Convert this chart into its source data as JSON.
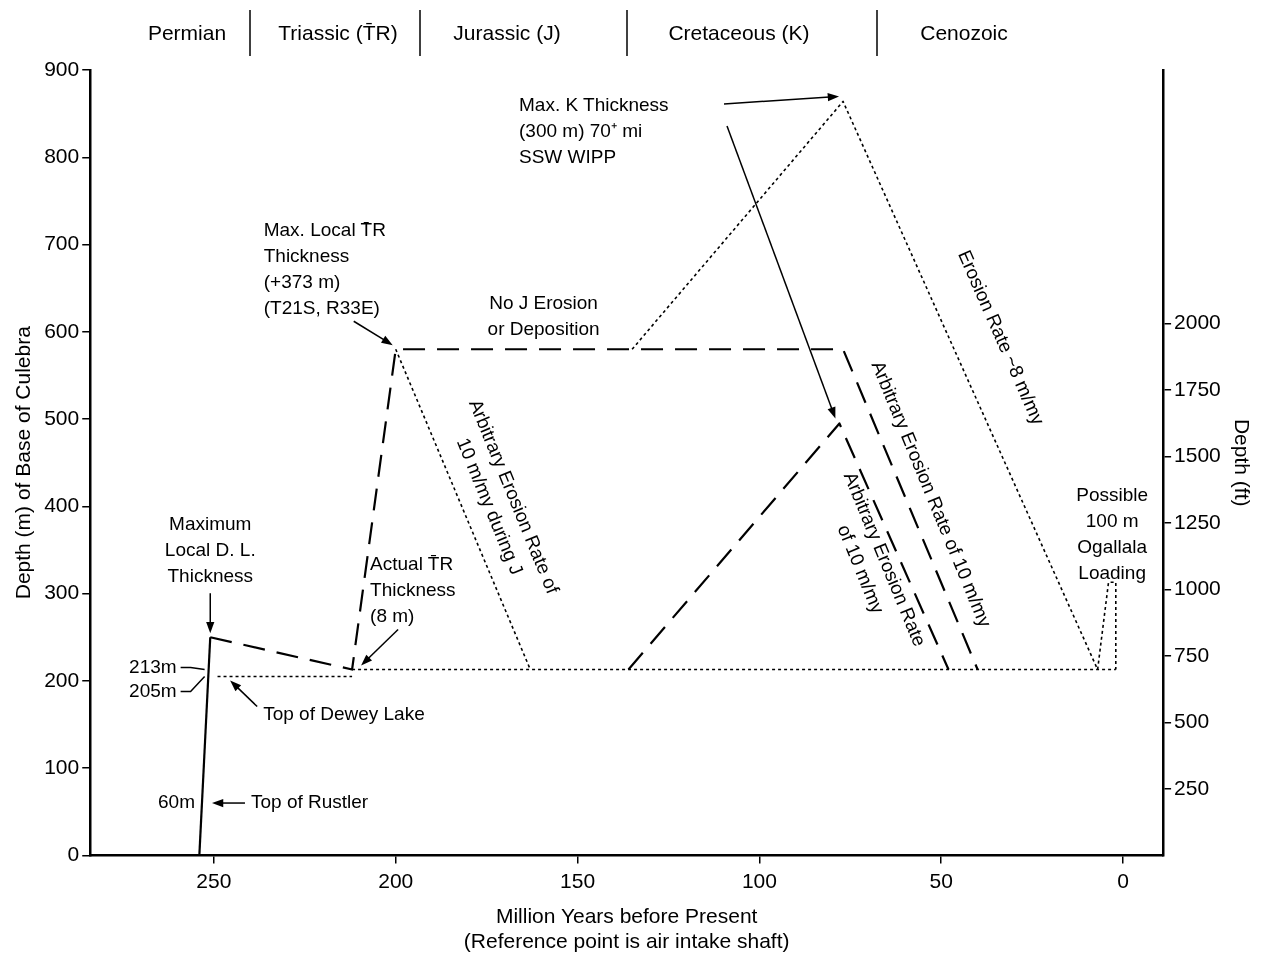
{
  "chart_data": {
    "type": "line",
    "xlabel": "Million Years before Present\n(Reference point is air intake shaft)",
    "ylabel": "Depth (m) of Base of Culebra",
    "y2label": "Depth (ft)",
    "xlim": [
      284,
      -11
    ],
    "xticks": [
      250,
      200,
      150,
      100,
      50,
      0
    ],
    "ylim": [
      0,
      900
    ],
    "yticks": [
      0,
      100,
      200,
      300,
      400,
      500,
      600,
      700,
      800,
      900
    ],
    "y2lim": [
      0,
      2953
    ],
    "y2ticks": [
      250,
      500,
      750,
      1000,
      1250,
      1500,
      1750,
      2000
    ],
    "grid": false,
    "legend": false,
    "marker": "none",
    "series": [
      {
        "color": "#000000",
        "line_style": "solid",
        "x": [
          254,
          251
        ],
        "values": [
          0,
          250
        ]
      },
      {
        "color": "#000000",
        "line_style": "dashed",
        "x": [
          251,
          212,
          200,
          77,
          40
        ],
        "values": [
          250,
          213,
          580,
          580,
          213
        ]
      },
      {
        "color": "#000000",
        "line_style": "dashed",
        "x": [
          136,
          78,
          48
        ],
        "values": [
          213,
          495,
          213
        ]
      },
      {
        "color": "#000000",
        "line_style": "dotted",
        "x": [
          249,
          212
        ],
        "values": [
          205,
          205
        ]
      },
      {
        "color": "#000000",
        "line_style": "dotted",
        "x": [
          212,
          2
        ],
        "values": [
          213,
          213
        ]
      },
      {
        "color": "#000000",
        "line_style": "dotted",
        "x": [
          200,
          163
        ],
        "values": [
          580,
          213
        ]
      },
      {
        "color": "#000000",
        "line_style": "dotted",
        "x": [
          135,
          77,
          7,
          4,
          2,
          2
        ],
        "values": [
          580,
          864,
          213,
          313,
          313,
          213
        ]
      }
    ],
    "annotations": [
      {
        "text": "Maximum\nLocal D. L.\nThickness",
        "x": 251,
        "y": 250
      },
      {
        "text": "213m",
        "x": 252,
        "y": 213
      },
      {
        "text": "205m",
        "x": 252,
        "y": 205
      },
      {
        "text": "60m",
        "x": 253,
        "y": 60
      },
      {
        "text": "Top of Rustler",
        "x": 253,
        "y": 60
      },
      {
        "text": "Top of Dewey Lake",
        "x": 248,
        "y": 205
      },
      {
        "text": "Actual T̄R\nThickness\n(8 m)",
        "x": 212,
        "y": 213
      },
      {
        "text": "Max. Local T̄R\nThickness\n(+373 m)\n(T21S, R33E)",
        "x": 200,
        "y": 580
      },
      {
        "text": "No J Erosion\nor Deposition",
        "x": 150,
        "y": 580
      },
      {
        "text": "Arbitrary Erosion Rate of\n10 m/my during J",
        "x": 181.5,
        "y": 396
      },
      "Max. K Thickness\n(300 m) 70⁺ mi\nSSW WIPP",
      {
        "text": "Erosion Rate ~8 m/my",
        "x": 42,
        "y": 538
      },
      {
        "text": "Arbitrary Erosion Rate of 10 m/my",
        "x": 59,
        "y": 400
      },
      {
        "text": "Arbitrary Erosion Rate\nof 10 m/my",
        "x": 63,
        "y": 354
      },
      {
        "text": "Possible\n100 m\nOgallala\nLoading",
        "x": 3,
        "y": 313
      },
      "Permian",
      "Triassic (T̄R)",
      "Jurassic (J)",
      "Cretaceous (K)",
      "Cenozoic"
    ]
  }
}
